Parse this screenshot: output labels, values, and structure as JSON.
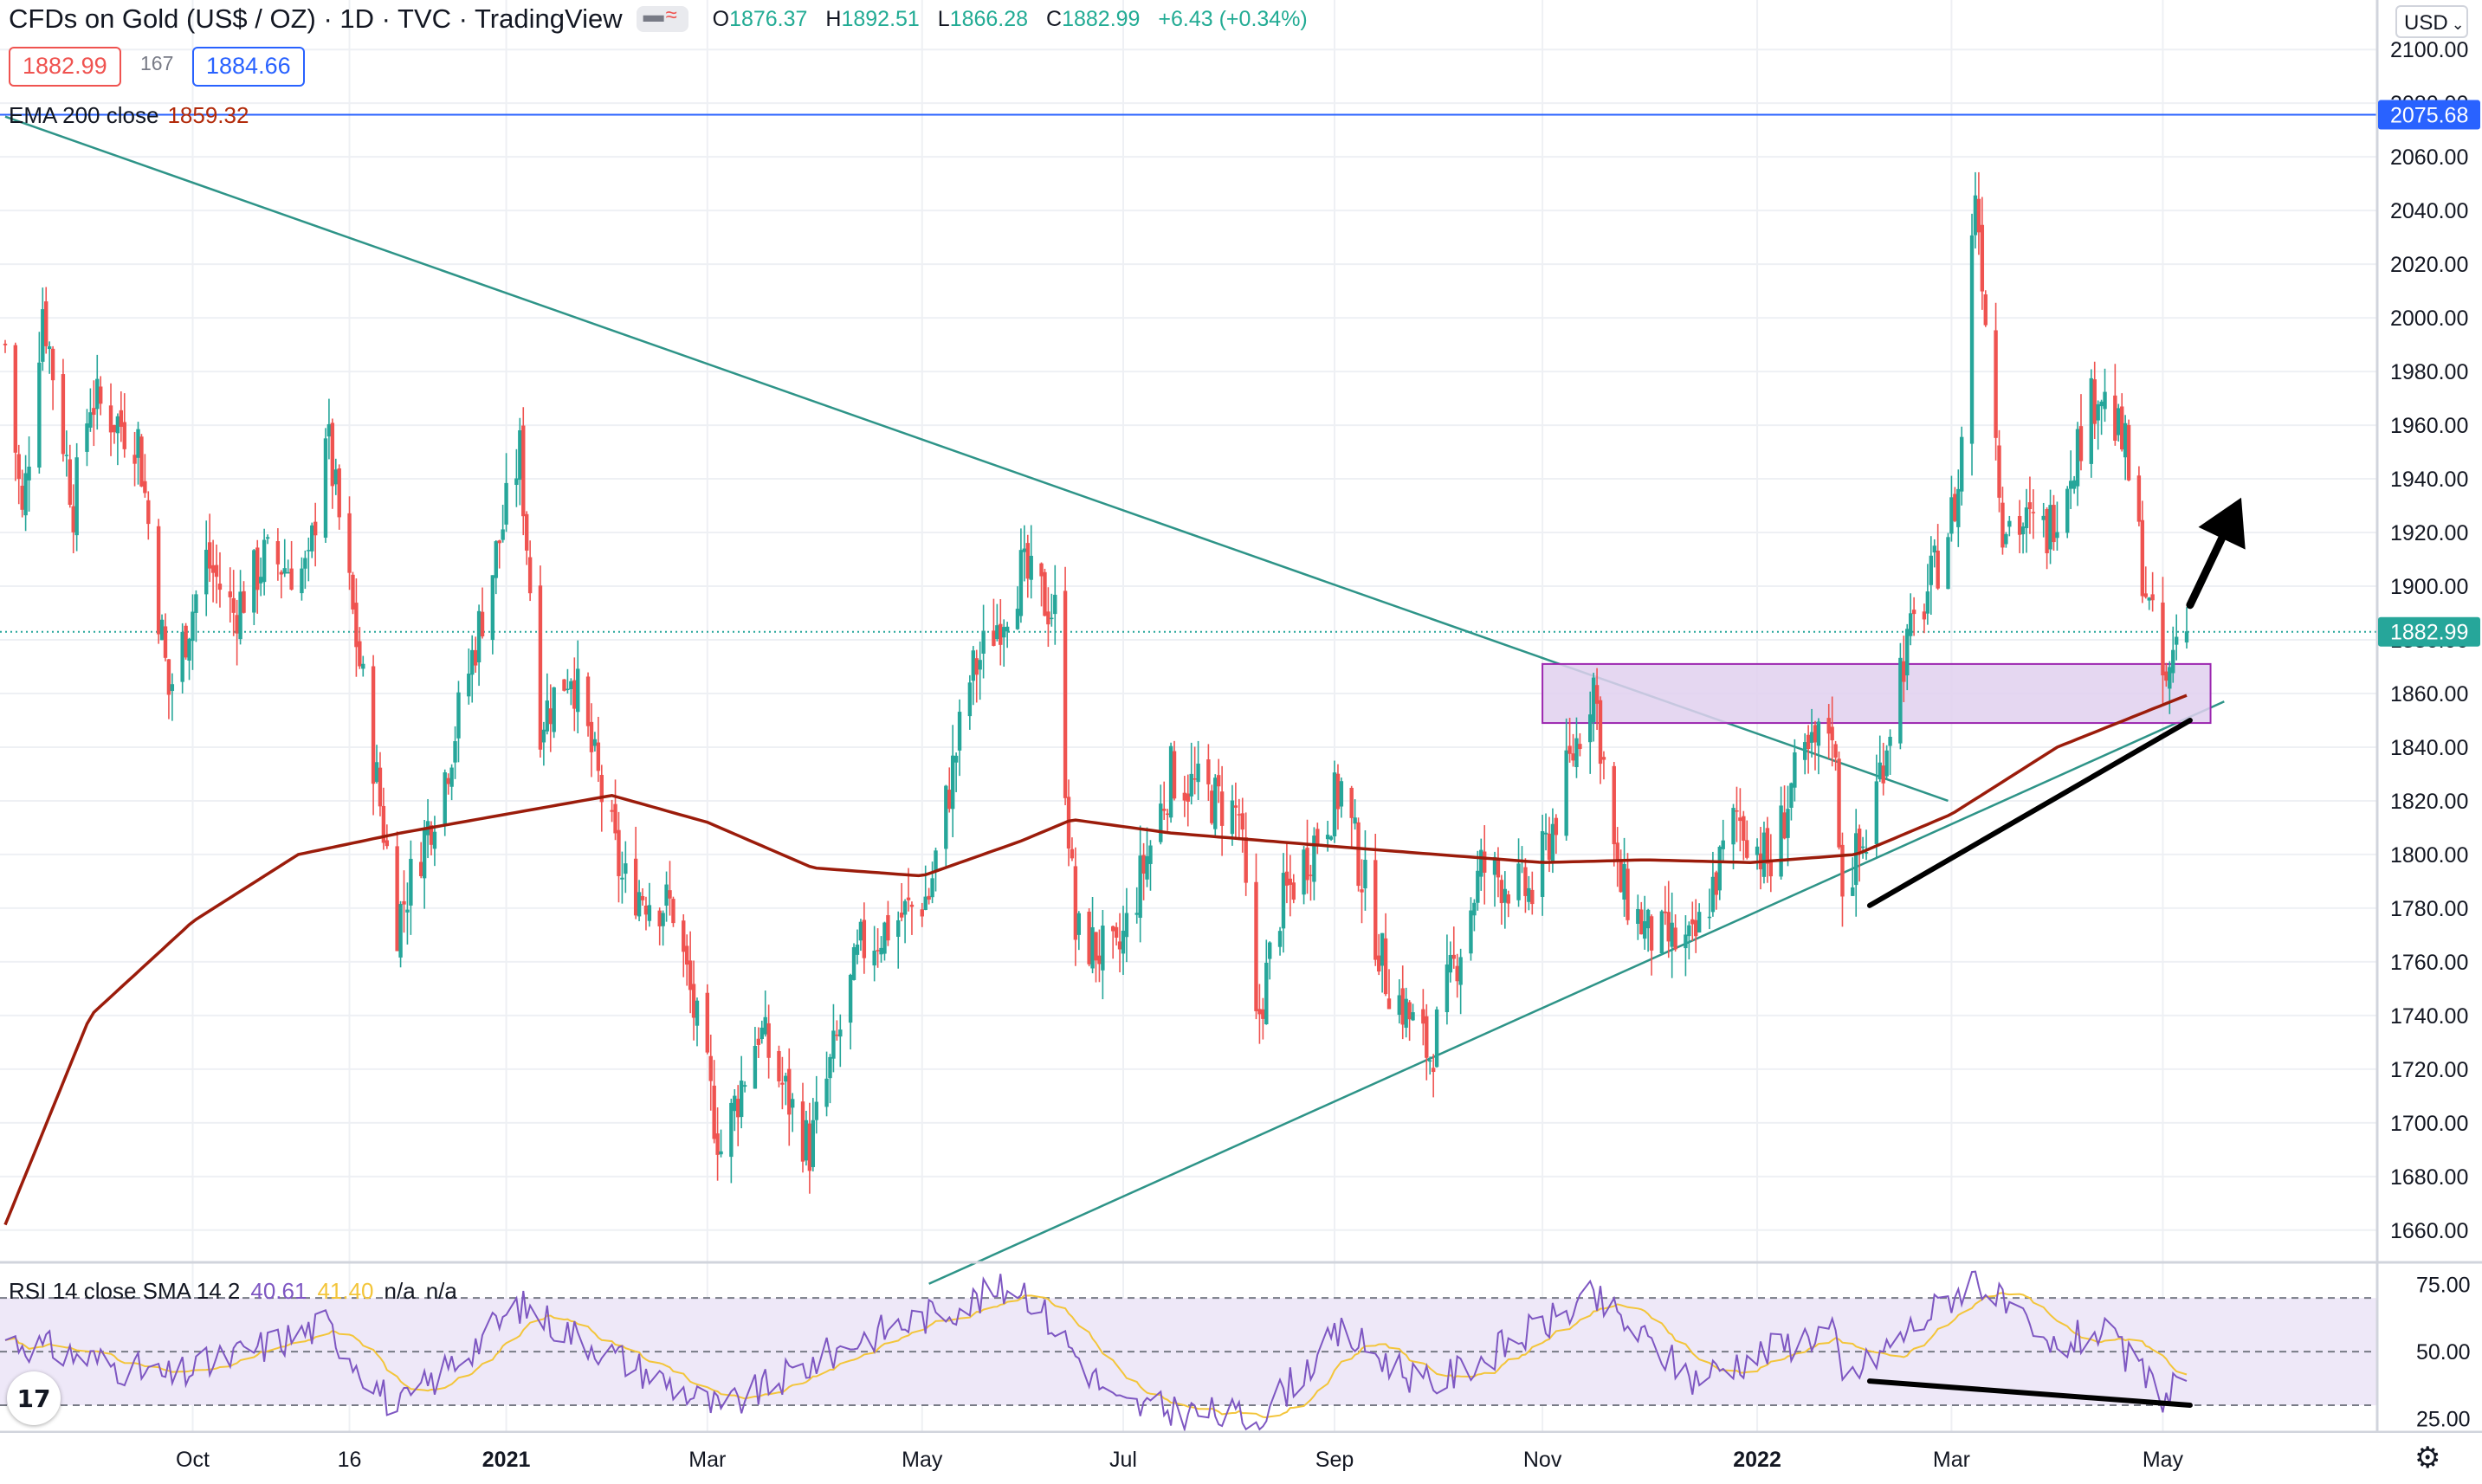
{
  "header": {
    "symbol_title": "CFDs on Gold (US$ / OZ) · 1D · TVC · TradingView",
    "open_label": "O",
    "open": "1876.37",
    "high_label": "H",
    "high": "1892.51",
    "low_label": "L",
    "low": "1866.28",
    "close_label": "C",
    "close": "1882.99",
    "change": "+6.43 (+0.34%)"
  },
  "order_boxes": {
    "sell": "1882.99",
    "spread": "167",
    "buy": "1884.66"
  },
  "ema_legend": {
    "label": "EMA 200 close",
    "value": "1859.32"
  },
  "rsi_legend": {
    "label": "RSI 14 close SMA 14 2",
    "rsi": "40.61",
    "sma": "41.40",
    "na1": "n/a",
    "na2": "n/a"
  },
  "currency_button": "USD",
  "price_axis": {
    "current_label": "1882.99",
    "hline_label": "2075.68",
    "ticks": [
      "2100.00",
      "2080.00",
      "2060.00",
      "2040.00",
      "2020.00",
      "2000.00",
      "1980.00",
      "1960.00",
      "1940.00",
      "1920.00",
      "1900.00",
      "1880.00",
      "1860.00",
      "1840.00",
      "1820.00",
      "1800.00",
      "1780.00",
      "1760.00",
      "1740.00",
      "1720.00",
      "1700.00",
      "1680.00",
      "1660.00"
    ]
  },
  "rsi_axis": {
    "ticks": [
      "75.00",
      "50.00",
      "25.00"
    ]
  },
  "time_axis": {
    "ticks": [
      "Oct",
      "16",
      "2021",
      "Mar",
      "May",
      "Jul",
      "Sep",
      "Nov",
      "2022",
      "Mar",
      "May"
    ]
  },
  "colors": {
    "bull": "#26a69a",
    "bear": "#ef5350",
    "ema": "#9b1c0b",
    "trendline": "#2e9488",
    "hline": "#2962ff",
    "zone_fill": "#e1d0ef",
    "zone_border": "#9c27b0",
    "rsi_line": "#7e57c2",
    "rsi_sma": "#f3c53a",
    "rsi_band": "#eee8f8"
  },
  "chart_data": {
    "type": "candlestick",
    "title": "CFDs on Gold (US$ / OZ)",
    "timeframe": "1D",
    "ylim": [
      1648,
      2112
    ],
    "price_series_anchors": [
      {
        "date": "2020-08-07",
        "price": 1990
      },
      {
        "date": "2020-08-12",
        "price": 1925
      },
      {
        "date": "2020-08-18",
        "price": 2005
      },
      {
        "date": "2020-08-27",
        "price": 1930
      },
      {
        "date": "2020-09-01",
        "price": 1970
      },
      {
        "date": "2020-09-15",
        "price": 1955
      },
      {
        "date": "2020-09-24",
        "price": 1860
      },
      {
        "date": "2020-10-05",
        "price": 1910
      },
      {
        "date": "2020-10-13",
        "price": 1890
      },
      {
        "date": "2020-10-22",
        "price": 1910
      },
      {
        "date": "2020-11-04",
        "price": 1905
      },
      {
        "date": "2020-11-09",
        "price": 1960
      },
      {
        "date": "2020-11-18",
        "price": 1880
      },
      {
        "date": "2020-11-30",
        "price": 1775
      },
      {
        "date": "2020-12-14",
        "price": 1830
      },
      {
        "date": "2021-01-05",
        "price": 1950
      },
      {
        "date": "2021-01-11",
        "price": 1850
      },
      {
        "date": "2021-01-20",
        "price": 1870
      },
      {
        "date": "2021-02-04",
        "price": 1790
      },
      {
        "date": "2021-02-19",
        "price": 1780
      },
      {
        "date": "2021-03-05",
        "price": 1690
      },
      {
        "date": "2021-03-16",
        "price": 1735
      },
      {
        "date": "2021-03-31",
        "price": 1690
      },
      {
        "date": "2021-04-15",
        "price": 1765
      },
      {
        "date": "2021-05-05",
        "price": 1785
      },
      {
        "date": "2021-05-17",
        "price": 1865
      },
      {
        "date": "2021-06-01",
        "price": 1905
      },
      {
        "date": "2021-06-11",
        "price": 1890
      },
      {
        "date": "2021-06-17",
        "price": 1770
      },
      {
        "date": "2021-06-29",
        "price": 1760
      },
      {
        "date": "2021-07-15",
        "price": 1830
      },
      {
        "date": "2021-08-04",
        "price": 1815
      },
      {
        "date": "2021-08-09",
        "price": 1735
      },
      {
        "date": "2021-08-16",
        "price": 1780
      },
      {
        "date": "2021-09-03",
        "price": 1825
      },
      {
        "date": "2021-09-16",
        "price": 1755
      },
      {
        "date": "2021-09-29",
        "price": 1725
      },
      {
        "date": "2021-10-14",
        "price": 1795
      },
      {
        "date": "2021-10-29",
        "price": 1785
      },
      {
        "date": "2021-11-05",
        "price": 1815
      },
      {
        "date": "2021-11-16",
        "price": 1865
      },
      {
        "date": "2021-11-23",
        "price": 1790
      },
      {
        "date": "2021-12-02",
        "price": 1770
      },
      {
        "date": "2021-12-15",
        "price": 1765
      },
      {
        "date": "2021-12-28",
        "price": 1815
      },
      {
        "date": "2022-01-07",
        "price": 1795
      },
      {
        "date": "2022-01-13",
        "price": 1825
      },
      {
        "date": "2022-01-25",
        "price": 1850
      },
      {
        "date": "2022-01-28",
        "price": 1790
      },
      {
        "date": "2022-02-04",
        "price": 1805
      },
      {
        "date": "2022-02-14",
        "price": 1870
      },
      {
        "date": "2022-02-24",
        "price": 1905
      },
      {
        "date": "2022-03-03",
        "price": 1935
      },
      {
        "date": "2022-03-08",
        "price": 2050
      },
      {
        "date": "2022-03-16",
        "price": 1925
      },
      {
        "date": "2022-03-29",
        "price": 1920
      },
      {
        "date": "2022-04-13",
        "price": 1975
      },
      {
        "date": "2022-04-21",
        "price": 1950
      },
      {
        "date": "2022-04-28",
        "price": 1890
      },
      {
        "date": "2022-05-03",
        "price": 1860
      },
      {
        "date": "2022-05-06",
        "price": 1882.99
      }
    ],
    "last_bar": {
      "open": 1876.37,
      "high": 1892.51,
      "low": 1866.28,
      "close": 1882.99
    },
    "ema200_anchors": [
      {
        "date": "2020-08-07",
        "value": 1662
      },
      {
        "date": "2020-09-01",
        "value": 1740
      },
      {
        "date": "2020-10-01",
        "value": 1775
      },
      {
        "date": "2020-11-01",
        "value": 1800
      },
      {
        "date": "2020-12-01",
        "value": 1808
      },
      {
        "date": "2021-01-01",
        "value": 1815
      },
      {
        "date": "2021-02-01",
        "value": 1822
      },
      {
        "date": "2021-03-01",
        "value": 1812
      },
      {
        "date": "2021-04-01",
        "value": 1795
      },
      {
        "date": "2021-05-03",
        "value": 1792
      },
      {
        "date": "2021-06-01",
        "value": 1805
      },
      {
        "date": "2021-06-16",
        "value": 1813
      },
      {
        "date": "2021-07-15",
        "value": 1808
      },
      {
        "date": "2021-09-01",
        "value": 1803
      },
      {
        "date": "2021-10-01",
        "value": 1800
      },
      {
        "date": "2021-11-01",
        "value": 1797
      },
      {
        "date": "2021-12-01",
        "value": 1798
      },
      {
        "date": "2022-01-01",
        "value": 1797
      },
      {
        "date": "2022-02-01",
        "value": 1800
      },
      {
        "date": "2022-03-01",
        "value": 1815
      },
      {
        "date": "2022-04-01",
        "value": 1840
      },
      {
        "date": "2022-05-09",
        "value": 1859.32
      }
    ],
    "horizontal_line": 2075.68,
    "support_zone": {
      "from": "2021-11-01",
      "to": "2022-05-16",
      "low": 1849,
      "high": 1871
    },
    "trendlines": [
      {
        "name": "descending",
        "from": {
          "date": "2020-08-07",
          "price": 2075
        },
        "to": {
          "date": "2022-02-28",
          "price": 1820
        }
      },
      {
        "name": "ascending",
        "from": {
          "date": "2021-05-05",
          "price": 1640
        },
        "to": {
          "date": "2022-05-20",
          "price": 1857
        }
      },
      {
        "name": "higher-lows",
        "from": {
          "date": "2022-02-05",
          "price": 1781
        },
        "to": {
          "date": "2022-05-10",
          "price": 1850
        }
      }
    ],
    "arrow": {
      "from": {
        "date": "2022-05-10",
        "price": 1893
      },
      "to": {
        "date": "2022-05-25",
        "price": 1933
      }
    },
    "rsi": {
      "period": 14,
      "current": 40.61,
      "sma": 41.4,
      "overbought": 70,
      "middle": 50,
      "oversold": 30,
      "ylim": [
        20,
        82
      ],
      "anchors": [
        {
          "date": "2020-08-07",
          "rsi": 55
        },
        {
          "date": "2020-09-24",
          "rsi": 40
        },
        {
          "date": "2020-11-09",
          "rsi": 60
        },
        {
          "date": "2020-11-30",
          "rsi": 28
        },
        {
          "date": "2021-01-05",
          "rsi": 67
        },
        {
          "date": "2021-03-05",
          "rsi": 28
        },
        {
          "date": "2021-04-15",
          "rsi": 55
        },
        {
          "date": "2021-06-01",
          "rsi": 75
        },
        {
          "date": "2021-06-29",
          "rsi": 30
        },
        {
          "date": "2021-08-09",
          "rsi": 25
        },
        {
          "date": "2021-09-03",
          "rsi": 57
        },
        {
          "date": "2021-09-29",
          "rsi": 37
        },
        {
          "date": "2021-11-16",
          "rsi": 70
        },
        {
          "date": "2021-12-15",
          "rsi": 40
        },
        {
          "date": "2022-01-25",
          "rsi": 59
        },
        {
          "date": "2022-01-28",
          "rsi": 38
        },
        {
          "date": "2022-03-08",
          "rsi": 78
        },
        {
          "date": "2022-03-29",
          "rsi": 50
        },
        {
          "date": "2022-04-13",
          "rsi": 58
        },
        {
          "date": "2022-05-03",
          "rsi": 33
        },
        {
          "date": "2022-05-06",
          "rsi": 40.61
        }
      ],
      "divergence_line": {
        "from": {
          "date": "2022-02-05",
          "rsi": 39
        },
        "to": {
          "date": "2022-05-10",
          "rsi": 30
        }
      }
    }
  }
}
